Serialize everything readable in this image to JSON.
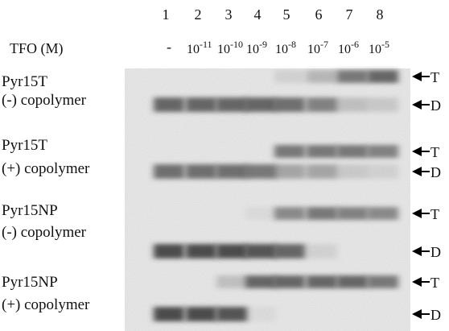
{
  "lanes": [
    "1",
    "2",
    "3",
    "4",
    "5",
    "6",
    "7",
    "8"
  ],
  "concentration_label": "TFO (M)",
  "concentrations": [
    "-",
    {
      "base": "10",
      "exp": "-11"
    },
    {
      "base": "10",
      "exp": "-10"
    },
    {
      "base": "10",
      "exp": "-9"
    },
    {
      "base": "10",
      "exp": "-8"
    },
    {
      "base": "10",
      "exp": "-7"
    },
    {
      "base": "10",
      "exp": "-6"
    },
    {
      "base": "10",
      "exp": "-5"
    }
  ],
  "rows": [
    {
      "line1": "Pyr15T",
      "line2": "(-) copolymer",
      "markers": [
        "T",
        "D"
      ]
    },
    {
      "line1": "Pyr15T",
      "line2": "(+) copolymer",
      "markers": [
        "T",
        "D"
      ]
    },
    {
      "line1": "Pyr15NP",
      "line2": "(-) copolymer",
      "markers": [
        "T",
        "D"
      ]
    },
    {
      "line1": "Pyr15NP",
      "line2": "(+) copolymer",
      "markers": [
        "T",
        "D"
      ]
    }
  ]
}
